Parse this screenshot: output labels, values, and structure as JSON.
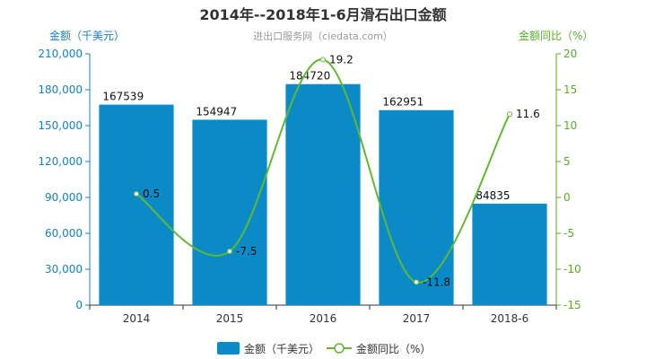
{
  "chart_data": {
    "type": "bar",
    "title": "2014年--2018年1-6月滑石出口金额",
    "subtitle": "进出口服务网（ciedata.com）",
    "categories": [
      "2014",
      "2015",
      "2016",
      "2017",
      "2018-6"
    ],
    "series": [
      {
        "name": "金额（千美元）",
        "type": "bar",
        "axis": "left",
        "color": "#0a8bc8",
        "values": [
          167539,
          154947,
          184720,
          162951,
          84835
        ],
        "labels": [
          "167539",
          "154947",
          "184720",
          "162951",
          "84835"
        ]
      },
      {
        "name": "金额同比（%）",
        "type": "line",
        "axis": "right",
        "color": "#62b833",
        "values": [
          0.5,
          -7.5,
          19.2,
          -11.8,
          11.6
        ],
        "labels": [
          "0.5",
          "-7.5",
          "19.2",
          "-11.8",
          "11.6"
        ]
      }
    ],
    "y_left": {
      "label": "金额（千美元）",
      "ylim": [
        0,
        210000
      ],
      "ticks": [
        0,
        30000,
        60000,
        90000,
        120000,
        150000,
        180000,
        210000
      ],
      "tick_labels": [
        "0",
        "30,000",
        "60,000",
        "90,000",
        "120,000",
        "150,000",
        "180,000",
        "210,000"
      ]
    },
    "y_right": {
      "label": "金额同比（%）",
      "ylim": [
        -15,
        20
      ],
      "ticks": [
        -15,
        -10,
        -5,
        0,
        5,
        10,
        15,
        20
      ],
      "tick_labels": [
        "-15",
        "-10",
        "-5",
        "0",
        "5",
        "10",
        "15",
        "20"
      ]
    },
    "grid": false,
    "legend_position": "bottom"
  }
}
